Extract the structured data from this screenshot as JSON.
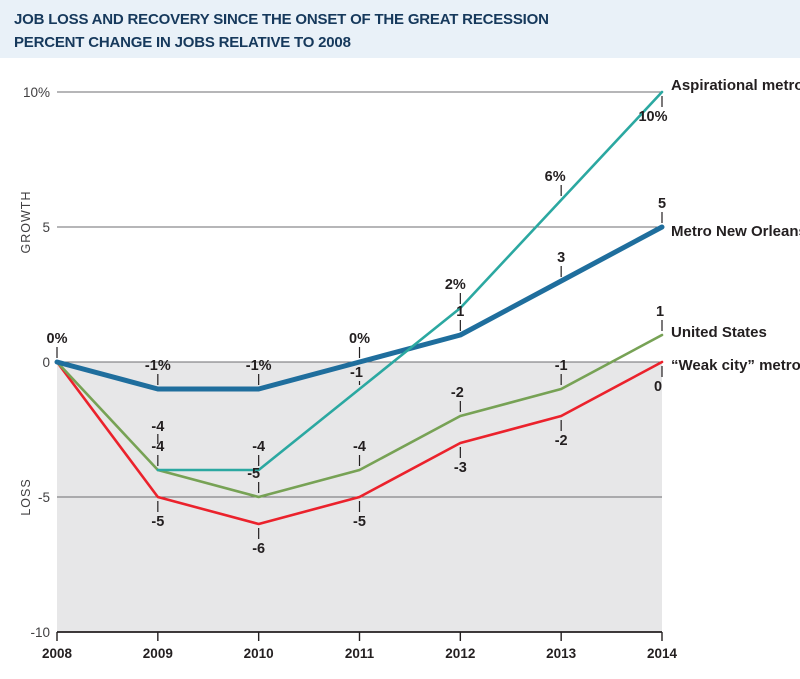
{
  "header": {
    "title_line1": "JOB LOSS AND RECOVERY SINCE THE ONSET OF THE GREAT RECESSION",
    "title_line2": "PERCENT CHANGE IN JOBS RELATIVE TO 2008",
    "bg_color": "#e9f1f8",
    "text_color": "#16395c"
  },
  "chart_data": {
    "type": "line",
    "title": "JOB LOSS AND RECOVERY SINCE THE ONSET OF THE GREAT RECESSION",
    "subtitle": "PERCENT CHANGE IN JOBS RELATIVE TO 2008",
    "ylim": [
      -10,
      10
    ],
    "grid": true,
    "grid_values": [
      10,
      5,
      0,
      -5
    ],
    "axis_color": "#231f20",
    "grid_color": "#6d6e71",
    "shaded_region": {
      "from": 0,
      "to": -10,
      "color": "#e7e7e8"
    },
    "x_ticks": [
      "2008",
      "2009",
      "2010",
      "2011",
      "2012",
      "2013",
      "2014"
    ],
    "y_ticks": [
      {
        "v": 10,
        "label": "10%"
      },
      {
        "v": 5,
        "label": "5"
      },
      {
        "v": 0,
        "label": "0"
      },
      {
        "v": -5,
        "label": "-5"
      },
      {
        "v": -10,
        "label": "-10"
      }
    ],
    "axis_titles": {
      "growth": "GROWTH",
      "loss": "LOSS"
    },
    "series": [
      {
        "name": "weak-city-metros",
        "label": "“Weak city” metros",
        "color": "#eb222c",
        "width": 2.6,
        "x": [
          2008,
          2009,
          2010,
          2011,
          2012,
          2013,
          2014
        ],
        "values": [
          0,
          -5,
          -6,
          -5,
          -3,
          -2,
          0
        ]
      },
      {
        "name": "united-states",
        "label": "United States",
        "color": "#77a255",
        "width": 2.6,
        "x": [
          2008,
          2009,
          2010,
          2011,
          2012,
          2013,
          2014
        ],
        "values": [
          0,
          -4,
          -5,
          -4,
          -2,
          -1,
          1
        ]
      },
      {
        "name": "metro-new-orleans",
        "label": "Metro New Orleans",
        "color": "#1f6e9d",
        "width": 5,
        "x": [
          2008,
          2009,
          2010,
          2011,
          2012,
          2013,
          2014
        ],
        "values": [
          0,
          -1,
          -1,
          0,
          1,
          3,
          5
        ]
      },
      {
        "name": "aspirational-metros",
        "label": "Aspirational metros",
        "color": "#2ba8a1",
        "width": 2.6,
        "x": [
          2009,
          2010,
          2011,
          2012,
          2013,
          2014
        ],
        "values": [
          -4,
          -4,
          -1,
          2,
          6,
          10
        ]
      }
    ],
    "series_labels": [
      {
        "text": "Aspirational metros",
        "v": 10,
        "doff": -2
      },
      {
        "text": "Metro New Orleans",
        "v": 5,
        "doff": 9
      },
      {
        "text": "United States",
        "v": 1,
        "doff": 2
      },
      {
        "text": "“Weak city” metros",
        "v": 0,
        "doff": 8
      }
    ],
    "point_labels": [
      {
        "yr": 2008,
        "v": 0,
        "t": "0%",
        "side": "above"
      },
      {
        "yr": 2009,
        "v": -1,
        "t": "-1%",
        "side": "above"
      },
      {
        "yr": 2010,
        "v": -1,
        "t": "-1%",
        "side": "above"
      },
      {
        "yr": 2011,
        "v": 0,
        "t": "0%",
        "side": "above"
      },
      {
        "yr": 2012,
        "v": 1,
        "t": "1",
        "side": "above"
      },
      {
        "yr": 2013,
        "v": 3,
        "t": "3",
        "side": "above"
      },
      {
        "yr": 2014,
        "v": 5,
        "t": "5",
        "side": "above"
      },
      {
        "yr": 2009,
        "v": -4,
        "t": "-4",
        "side": "above",
        "dy": -20,
        "tick": [
          -36,
          -26
        ]
      },
      {
        "yr": 2010,
        "v": -4,
        "t": "-4",
        "side": "above"
      },
      {
        "yr": 2011,
        "v": -1,
        "t": "-1",
        "side": "above",
        "dy": 7,
        "tick": [
          -8,
          -4
        ],
        "dx": -3
      },
      {
        "yr": 2012,
        "v": 2,
        "t": "2%",
        "side": "above",
        "dx": -5
      },
      {
        "yr": 2013,
        "v": 6,
        "t": "6%",
        "side": "above",
        "dx": -6
      },
      {
        "yr": 2014,
        "v": 10,
        "t": "10%",
        "side": "below",
        "dx": -9
      },
      {
        "yr": 2009,
        "v": -4,
        "t": "-4",
        "side": "above",
        "skip_first": true
      },
      {
        "yr": 2010,
        "v": -5,
        "t": "-5",
        "side": "above",
        "dx": -5
      },
      {
        "yr": 2011,
        "v": -4,
        "t": "-4",
        "side": "above"
      },
      {
        "yr": 2012,
        "v": -2,
        "t": "-2",
        "side": "above",
        "dx": -3
      },
      {
        "yr": 2013,
        "v": -1,
        "t": "-1",
        "side": "above"
      },
      {
        "yr": 2014,
        "v": 1,
        "t": "1",
        "side": "above",
        "dx": -2
      },
      {
        "yr": 2009,
        "v": -5,
        "t": "-5",
        "side": "below"
      },
      {
        "yr": 2010,
        "v": -6,
        "t": "-6",
        "side": "below"
      },
      {
        "yr": 2011,
        "v": -5,
        "t": "-5",
        "side": "below"
      },
      {
        "yr": 2012,
        "v": -3,
        "t": "-3",
        "side": "below"
      },
      {
        "yr": 2013,
        "v": -2,
        "t": "-2",
        "side": "below"
      },
      {
        "yr": 2014,
        "v": 0,
        "t": "0",
        "side": "below",
        "dx": -4
      }
    ]
  }
}
